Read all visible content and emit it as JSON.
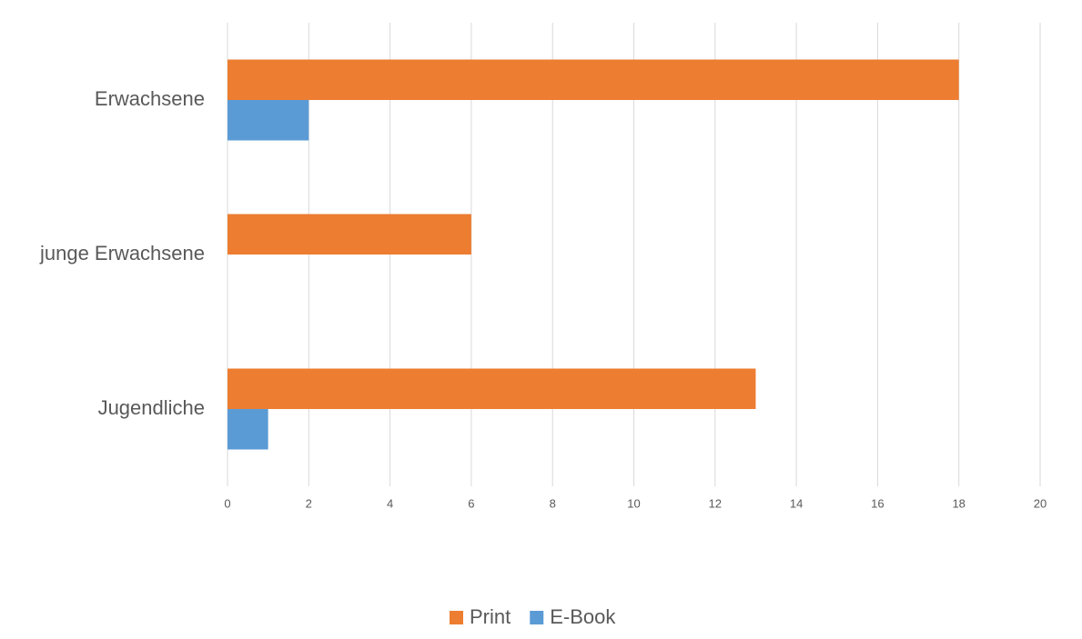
{
  "chart_data": {
    "type": "barh",
    "categories": [
      "Erwachsene",
      "junge Erwachsene",
      "Jugendliche"
    ],
    "series": [
      {
        "name": "Print",
        "color": "#ed7d31",
        "values": [
          18,
          6,
          13
        ]
      },
      {
        "name": "E-Book",
        "color": "#5b9bd5",
        "values": [
          2,
          0,
          1
        ]
      }
    ],
    "xlim": [
      0,
      20
    ],
    "xticks": [
      0,
      2,
      4,
      6,
      8,
      10,
      12,
      14,
      16,
      18,
      20
    ],
    "grid": true,
    "legend": "bottom"
  }
}
